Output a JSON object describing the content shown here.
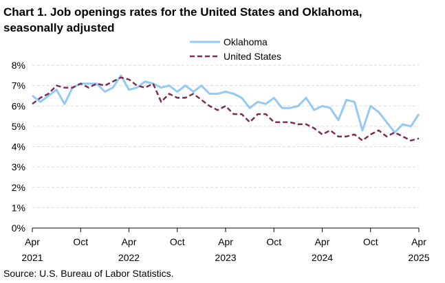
{
  "chart_data": {
    "type": "line",
    "title": "Chart 1. Job openings rates for the United States and Oklahoma, seasonally adjusted",
    "source": "Source: U.S. Bureau of Labor Statistics.",
    "ylim": [
      0,
      8
    ],
    "y_ticks": [
      "0%",
      "1%",
      "2%",
      "3%",
      "4%",
      "5%",
      "6%",
      "7%",
      "8%"
    ],
    "grid": true,
    "legend_position": "top-center",
    "x_ticks": [
      {
        "index": 0,
        "month": "Apr",
        "year": "2021"
      },
      {
        "index": 6,
        "month": "Oct",
        "year": ""
      },
      {
        "index": 12,
        "month": "Apr",
        "year": "2022"
      },
      {
        "index": 18,
        "month": "Oct",
        "year": ""
      },
      {
        "index": 24,
        "month": "Apr",
        "year": "2023"
      },
      {
        "index": 30,
        "month": "Oct",
        "year": ""
      },
      {
        "index": 36,
        "month": "Apr",
        "year": "2024"
      },
      {
        "index": 42,
        "month": "Oct",
        "year": ""
      },
      {
        "index": 48,
        "month": "Apr",
        "year": "2025"
      }
    ],
    "series": [
      {
        "name": "Oklahoma",
        "color": "#93c9f4",
        "style": "solid",
        "values": [
          6.5,
          6.2,
          6.5,
          6.8,
          6.1,
          6.9,
          7.1,
          7.1,
          7.1,
          6.7,
          6.9,
          7.5,
          6.8,
          6.9,
          7.2,
          7.1,
          6.9,
          7.0,
          6.7,
          7.0,
          6.7,
          7.0,
          6.6,
          6.6,
          6.7,
          6.6,
          6.4,
          5.9,
          6.2,
          6.1,
          6.4,
          5.9,
          5.9,
          6.0,
          6.4,
          5.8,
          6.0,
          5.9,
          5.3,
          6.3,
          6.2,
          4.8,
          6.0,
          5.7,
          5.2,
          4.7,
          5.1,
          5.0,
          5.6
        ]
      },
      {
        "name": "United States",
        "color": "#7b2d52",
        "style": "dashed",
        "values": [
          6.1,
          6.4,
          6.6,
          7.0,
          6.9,
          6.9,
          7.1,
          6.9,
          7.1,
          7.0,
          7.2,
          7.4,
          7.3,
          7.0,
          6.9,
          7.1,
          6.2,
          6.6,
          6.4,
          6.4,
          6.6,
          6.3,
          6.0,
          5.8,
          6.0,
          5.6,
          5.6,
          5.2,
          5.6,
          5.6,
          5.2,
          5.2,
          5.2,
          5.1,
          5.1,
          4.9,
          4.6,
          4.8,
          4.5,
          4.5,
          4.6,
          4.3,
          4.6,
          4.8,
          4.5,
          4.7,
          4.5,
          4.3,
          4.4
        ]
      }
    ]
  }
}
